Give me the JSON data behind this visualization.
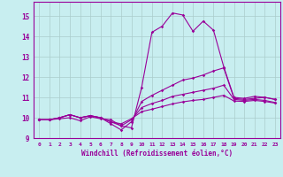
{
  "xlabel": "Windchill (Refroidissement éolien,°C)",
  "background_color": "#c8eef0",
  "line_color": "#990099",
  "grid_color": "#aacccc",
  "xlim": [
    -0.5,
    23.5
  ],
  "ylim": [
    9.0,
    15.7
  ],
  "yticks": [
    9,
    10,
    11,
    12,
    13,
    14,
    15
  ],
  "xticks": [
    0,
    1,
    2,
    3,
    4,
    5,
    6,
    7,
    8,
    9,
    10,
    11,
    12,
    13,
    14,
    15,
    16,
    17,
    18,
    19,
    20,
    21,
    22,
    23
  ],
  "line1": [
    9.9,
    9.9,
    9.95,
    10.0,
    9.85,
    10.05,
    9.95,
    9.9,
    9.6,
    9.5,
    11.5,
    14.2,
    14.5,
    15.15,
    15.05,
    14.25,
    14.75,
    14.3,
    12.5,
    11.0,
    10.95,
    11.05,
    11.0,
    10.9
  ],
  "line2": [
    9.9,
    9.9,
    10.0,
    10.15,
    10.0,
    10.1,
    10.0,
    9.7,
    9.4,
    9.8,
    10.8,
    11.1,
    11.35,
    11.6,
    11.85,
    11.95,
    12.1,
    12.3,
    12.45,
    10.95,
    10.9,
    10.95,
    11.0,
    10.9
  ],
  "line3": [
    9.9,
    9.9,
    10.0,
    10.15,
    10.0,
    10.1,
    10.0,
    9.8,
    9.6,
    9.9,
    10.5,
    10.7,
    10.85,
    11.05,
    11.15,
    11.25,
    11.35,
    11.45,
    11.6,
    10.9,
    10.85,
    10.9,
    10.85,
    10.75
  ],
  "line4": [
    9.9,
    9.9,
    10.0,
    10.15,
    10.0,
    10.1,
    10.0,
    9.8,
    9.7,
    9.95,
    10.3,
    10.42,
    10.55,
    10.68,
    10.78,
    10.85,
    10.9,
    11.0,
    11.1,
    10.82,
    10.8,
    10.85,
    10.8,
    10.72
  ]
}
